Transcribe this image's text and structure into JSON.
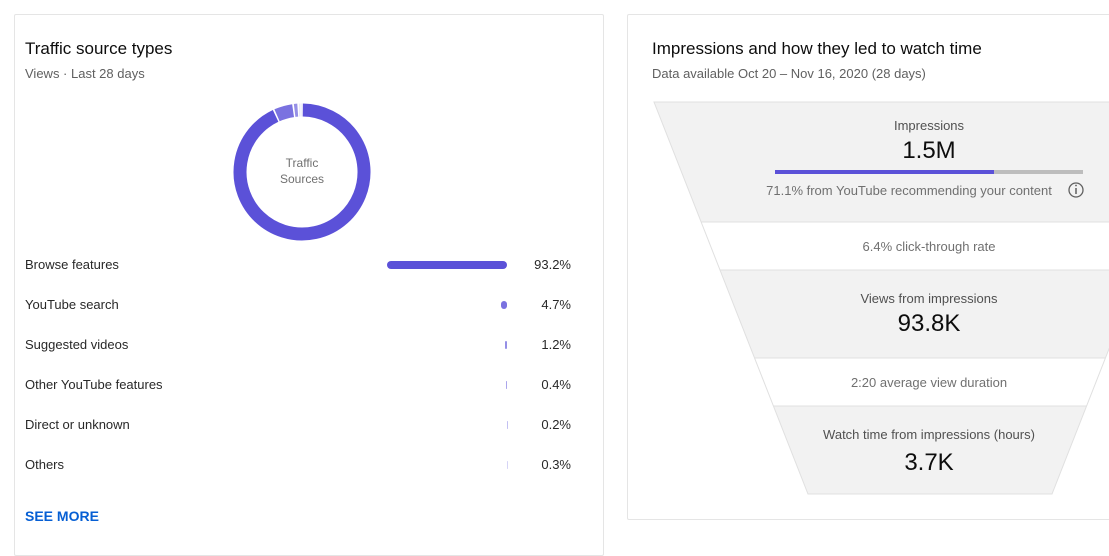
{
  "traffic_sources": {
    "type": "donut",
    "title": "Traffic source types",
    "subtitle": "Views · Last 28 days",
    "center_label": "Traffic Sources",
    "series": [
      {
        "name": "Browse features",
        "value": 93.2,
        "value_label": "93.2%",
        "color": "#5b51d8"
      },
      {
        "name": "YouTube search",
        "value": 4.7,
        "value_label": "4.7%",
        "color": "#7a72e0"
      },
      {
        "name": "Suggested videos",
        "value": 1.2,
        "value_label": "1.2%",
        "color": "#958fe6"
      },
      {
        "name": "Other YouTube features",
        "value": 0.4,
        "value_label": "0.4%",
        "color": "#aba6ec"
      },
      {
        "name": "Direct or unknown",
        "value": 0.2,
        "value_label": "0.2%",
        "color": "#c3c0f2"
      },
      {
        "name": "Others",
        "value": 0.3,
        "value_label": "0.3%",
        "color": "#d6d4f6"
      }
    ],
    "see_more": "SEE MORE"
  },
  "funnel": {
    "title": "Impressions and how they led to watch time",
    "subtitle": "Data available Oct 20 – Nov 16, 2020 (28 days)",
    "impressions": {
      "label": "Impressions",
      "value": "1.5M"
    },
    "recommended": {
      "value": 71.1,
      "text": "71.1% from YouTube recommending your content"
    },
    "ctr": "6.4% click-through rate",
    "views": {
      "label": "Views from impressions",
      "value": "93.8K"
    },
    "avg_duration": "2:20 average view duration",
    "watch_time": {
      "label": "Watch time from impressions (hours)",
      "value": "3.7K"
    }
  }
}
